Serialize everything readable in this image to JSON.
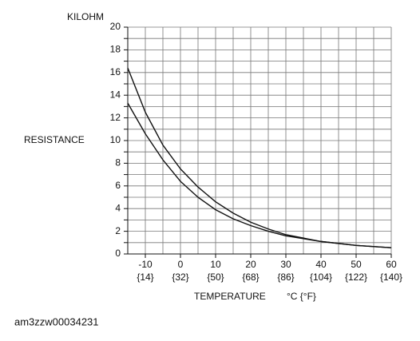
{
  "chart_data": {
    "type": "line",
    "y_title": "KILOHM",
    "y_label": "RESISTANCE",
    "x_label": "TEMPERATURE",
    "x_unit": "°C {°F}",
    "footer": "am3zzw00034231",
    "x": [
      -15,
      -10,
      -5,
      0,
      5,
      10,
      15,
      20,
      25,
      30,
      40,
      50,
      60
    ],
    "series": [
      {
        "color": "#111111",
        "values": [
          16.4,
          12.5,
          9.6,
          7.5,
          5.9,
          4.6,
          3.6,
          2.8,
          2.2,
          1.7,
          1.1,
          0.75,
          0.55
        ]
      },
      {
        "color": "#111111",
        "values": [
          13.3,
          10.6,
          8.3,
          6.4,
          5.0,
          3.9,
          3.1,
          2.5,
          2.0,
          1.6,
          1.1,
          0.75,
          0.55
        ]
      }
    ],
    "xlim": [
      -15,
      60
    ],
    "ylim": [
      0,
      20
    ],
    "xticks": [
      -10,
      0,
      10,
      20,
      30,
      40,
      50,
      60
    ],
    "xticks_f": [
      {
        "value": -10,
        "label": "{14}"
      },
      {
        "value": 0,
        "label": "{32}"
      },
      {
        "value": 10,
        "label": "{50}"
      },
      {
        "value": 20,
        "label": "{68}"
      },
      {
        "value": 30,
        "label": "{86}"
      },
      {
        "value": 40,
        "label": "{104}"
      },
      {
        "value": 50,
        "label": "{122}"
      },
      {
        "value": 60,
        "label": "{140}"
      }
    ],
    "yticks": [
      0,
      2,
      4,
      6,
      8,
      10,
      12,
      14,
      16,
      18,
      20
    ],
    "xgrid": [
      -15,
      -10,
      -5,
      0,
      5,
      10,
      15,
      20,
      25,
      30,
      35,
      40,
      45,
      50,
      55,
      60
    ],
    "ygrid": [
      0,
      1,
      2,
      3,
      4,
      5,
      6,
      7,
      8,
      9,
      10,
      11,
      12,
      13,
      14,
      15,
      16,
      17,
      18,
      19,
      20
    ]
  }
}
